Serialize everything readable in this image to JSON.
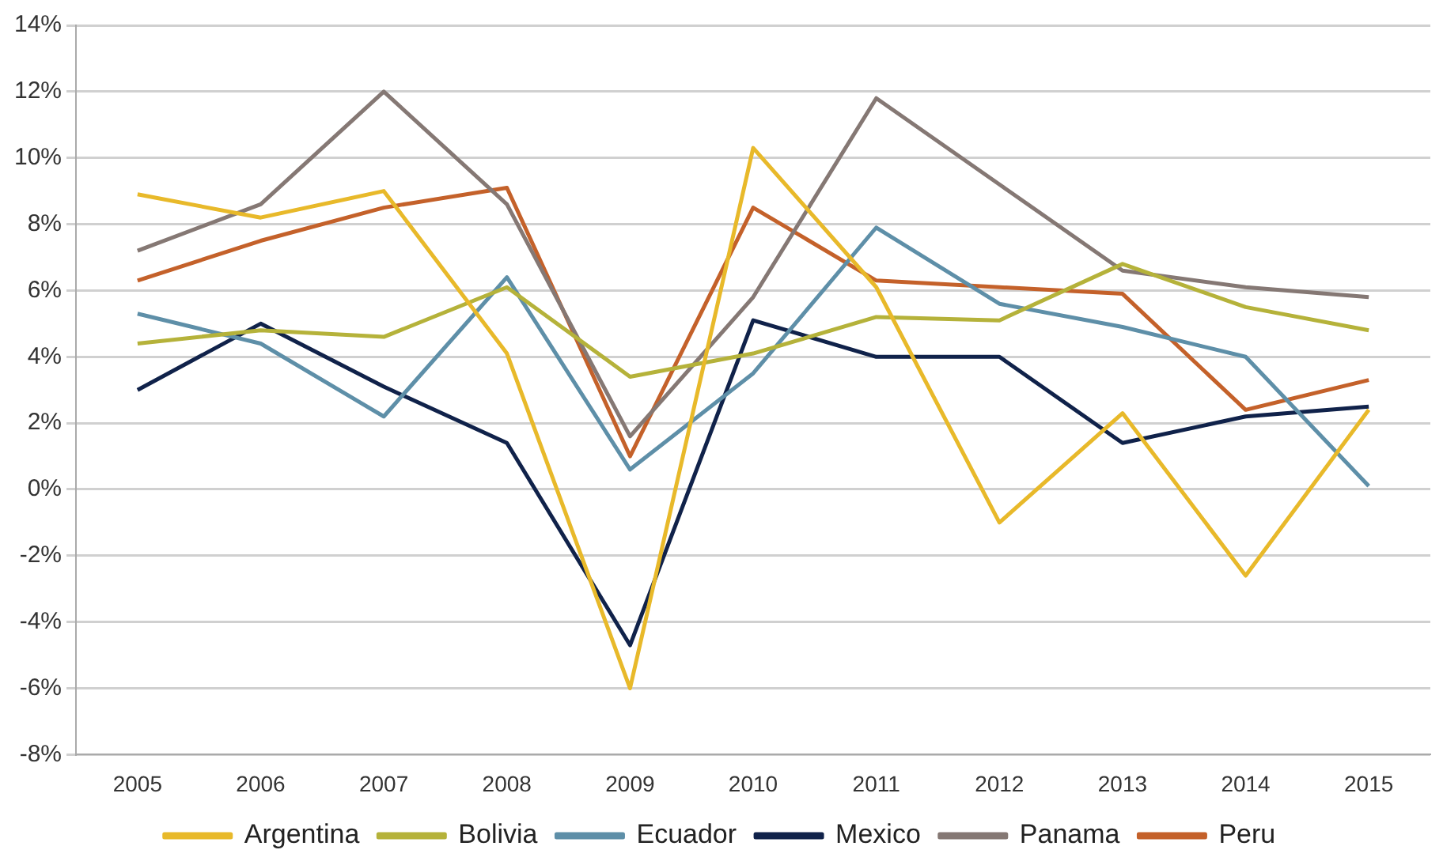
{
  "chart_data": {
    "type": "line",
    "categories": [
      "2005",
      "2006",
      "2007",
      "2008",
      "2009",
      "2010",
      "2011",
      "2012",
      "2013",
      "2014",
      "2015"
    ],
    "series": [
      {
        "name": "Argentina",
        "color": "#e8b92a",
        "values": [
          8.9,
          8.2,
          9.0,
          4.1,
          -6.0,
          10.3,
          6.1,
          -1.0,
          2.3,
          -2.6,
          2.4
        ]
      },
      {
        "name": "Bolivia",
        "color": "#b5b23a",
        "values": [
          4.4,
          4.8,
          4.6,
          6.1,
          3.4,
          4.1,
          5.2,
          5.1,
          6.8,
          5.5,
          4.8
        ]
      },
      {
        "name": "Ecuador",
        "color": "#5e8fa8",
        "values": [
          5.3,
          4.4,
          2.2,
          6.4,
          0.6,
          3.5,
          7.9,
          5.6,
          4.9,
          4.0,
          0.1
        ]
      },
      {
        "name": "Mexico",
        "color": "#10224a",
        "values": [
          3.0,
          5.0,
          3.1,
          1.4,
          -4.7,
          5.1,
          4.0,
          4.0,
          1.4,
          2.2,
          2.5
        ]
      },
      {
        "name": "Panama",
        "color": "#857874",
        "values": [
          7.2,
          8.6,
          12.0,
          8.6,
          1.6,
          5.8,
          11.8,
          9.2,
          6.6,
          6.1,
          5.8
        ]
      },
      {
        "name": "Peru",
        "color": "#c4612a",
        "values": [
          6.3,
          7.5,
          8.5,
          9.1,
          1.0,
          8.5,
          6.3,
          6.1,
          5.9,
          2.4,
          3.3
        ]
      }
    ],
    "ylim": [
      -8,
      14
    ],
    "yticks": [
      {
        "value": -8,
        "label": "-8%"
      },
      {
        "value": -6,
        "label": "-6%"
      },
      {
        "value": -4,
        "label": "-4%"
      },
      {
        "value": -2,
        "label": "-2%"
      },
      {
        "value": 0,
        "label": "0%"
      },
      {
        "value": 2,
        "label": "2%"
      },
      {
        "value": 4,
        "label": "4%"
      },
      {
        "value": 6,
        "label": "6%"
      },
      {
        "value": 8,
        "label": "8%"
      },
      {
        "value": 10,
        "label": "10%"
      },
      {
        "value": 12,
        "label": "12%"
      },
      {
        "value": 14,
        "label": "14%"
      }
    ],
    "grid": "y",
    "legend": "bottom",
    "marker": "none",
    "line_style": "solid"
  }
}
